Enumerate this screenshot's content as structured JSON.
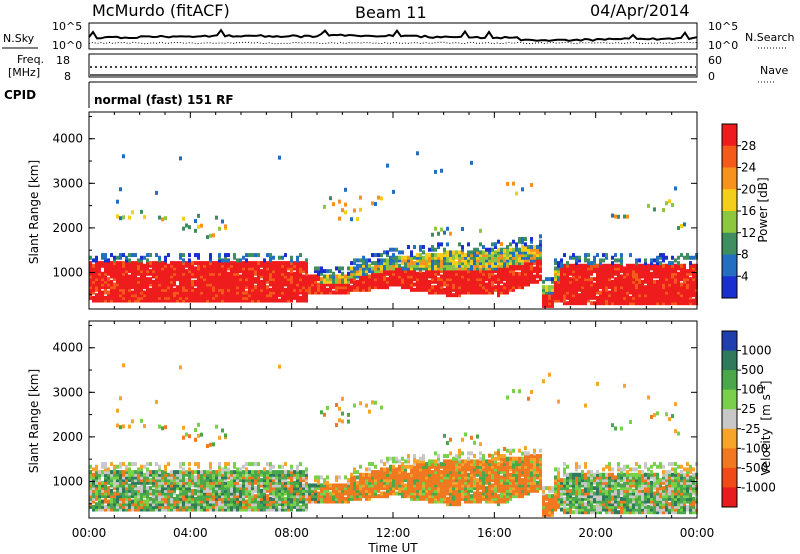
{
  "header": {
    "station": "McMurdo (fitACF)",
    "beam": "Beam 11",
    "date": "04/Apr/2014"
  },
  "sky_panel": {
    "left_label": "N.Sky",
    "right_label": "N.Search",
    "left_ticks": [
      "10^5",
      "10^0"
    ],
    "right_ticks": [
      "10^5",
      "10^0"
    ]
  },
  "freq_panel": {
    "left_label": "Freq.",
    "left_unit": "[MHz]",
    "right_label": "Nave",
    "left_ticks": [
      "18",
      "8"
    ],
    "right_ticks": [
      "60",
      "0"
    ]
  },
  "cpid_panel": {
    "left_label": "CPID",
    "text": "normal (fast) 151 RF"
  },
  "chart_data": [
    {
      "type": "heatmap",
      "title": "",
      "ylabel": "Slant Range [km]",
      "yticks": [
        "1000",
        "2000",
        "3000",
        "4000"
      ],
      "ylim": [
        180,
        4600
      ],
      "xticks": [
        "00:00",
        "04:00",
        "08:00",
        "12:00",
        "16:00",
        "20:00",
        "00:00"
      ],
      "xlim": [
        0,
        24
      ],
      "colorbar": {
        "label": "Power [dB]",
        "ticks": [
          "28",
          "24",
          "20",
          "16",
          "12",
          "8",
          "4"
        ],
        "colors": [
          "#ee1c1c",
          "#f45a1a",
          "#f7921e",
          "#f5ce1b",
          "#8dc63f",
          "#3e8e5f",
          "#236ec0",
          "#1a2fcf"
        ]
      }
    },
    {
      "type": "heatmap",
      "title": "",
      "xlabel": "Time UT",
      "ylabel": "Slant Range [km]",
      "yticks": [
        "1000",
        "2000",
        "3000",
        "4000"
      ],
      "ylim": [
        180,
        4600
      ],
      "xticks": [
        "00:00",
        "04:00",
        "08:00",
        "12:00",
        "16:00",
        "20:00",
        "00:00"
      ],
      "xlim": [
        0,
        24
      ],
      "colorbar": {
        "label": "Velocity",
        "unit": "[m s",
        "unit_sup": "-1",
        "unit_end": "]",
        "ticks": [
          "1000",
          "500",
          "100",
          "25",
          "-25",
          "-100",
          "-500",
          "-1000"
        ],
        "colors": [
          "#1f3fae",
          "#2e7a5a",
          "#4aa84a",
          "#79d14b",
          "#c8c8c8",
          "#f7a52a",
          "#f07820",
          "#ef4a18",
          "#e81c1c"
        ]
      }
    }
  ]
}
